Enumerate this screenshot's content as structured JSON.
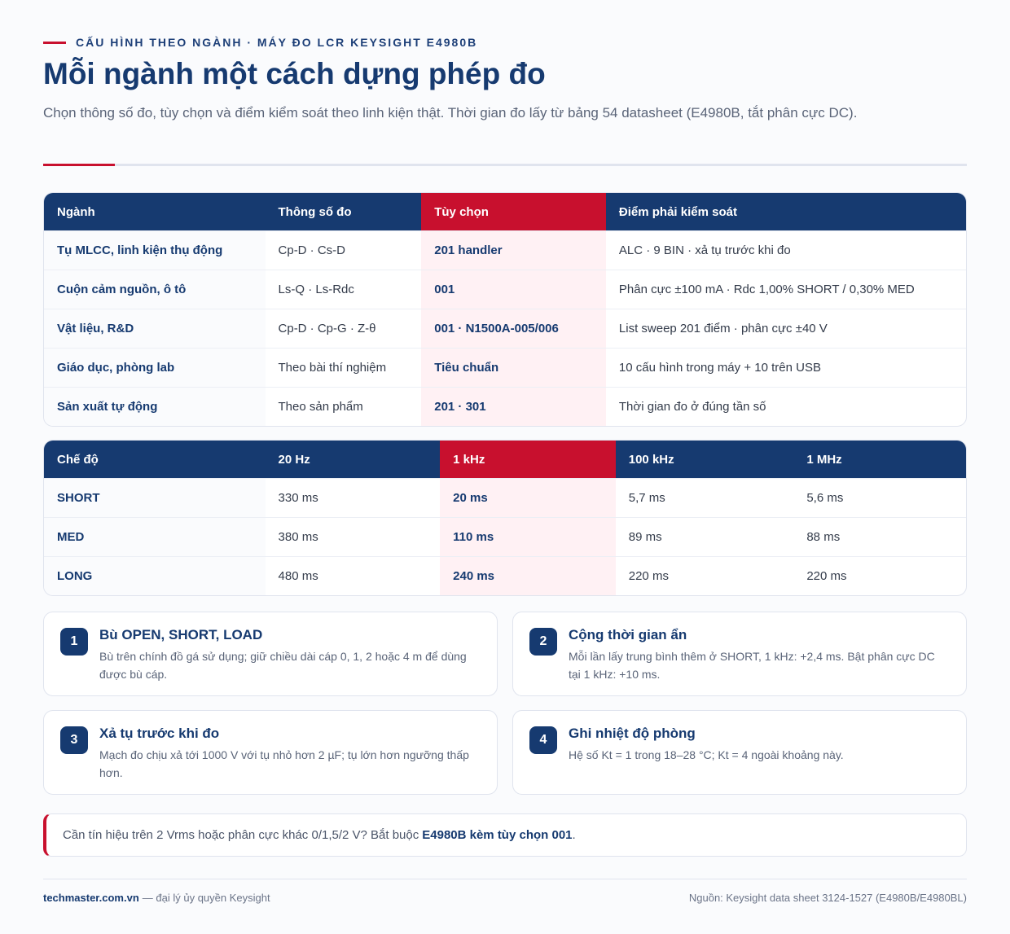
{
  "header": {
    "eyebrow": "CẤU HÌNH THEO NGÀNH · MÁY ĐO LCR KEYSIGHT E4980B",
    "title": "Mỗi ngành một cách dựng phép đo",
    "subtitle": "Chọn thông số đo, tùy chọn và điểm kiểm soát theo linh kiện thật. Thời gian đo lấy từ bảng 54 datasheet (E4980B, tắt phân cực DC)."
  },
  "industry_table": {
    "headers": [
      "Ngành",
      "Thông số đo",
      "Tùy chọn",
      "Điểm phải kiểm soát"
    ],
    "rows": [
      [
        "Tụ MLCC, linh kiện thụ động",
        "Cp-D · Cs-D",
        "201 handler",
        "ALC · 9 BIN · xả tụ trước khi đo"
      ],
      [
        "Cuộn cảm nguồn, ô tô",
        "Ls-Q · Ls-Rdc",
        "001",
        "Phân cực ±100 mA · Rdc 1,00% SHORT / 0,30% MED"
      ],
      [
        "Vật liệu, R&D",
        "Cp-D · Cp-G · Z-θ",
        "001 · N1500A-005/006",
        "List sweep 201 điểm · phân cực ±40 V"
      ],
      [
        "Giáo dục, phòng lab",
        "Theo bài thí nghiệm",
        "Tiêu chuẩn",
        "10 cấu hình trong máy + 10 trên USB"
      ],
      [
        "Sản xuất tự động",
        "Theo sản phẩm",
        "201 · 301",
        "Thời gian đo ở đúng tần số"
      ]
    ]
  },
  "timing_table": {
    "headers": [
      "Chế độ",
      "20 Hz",
      "1 kHz",
      "100 kHz",
      "1 MHz"
    ],
    "rows": [
      [
        "SHORT",
        "330 ms",
        "20 ms",
        "5,7 ms",
        "5,6 ms"
      ],
      [
        "MED",
        "380 ms",
        "110 ms",
        "89 ms",
        "88 ms"
      ],
      [
        "LONG",
        "480 ms",
        "240 ms",
        "220 ms",
        "220 ms"
      ]
    ]
  },
  "cards": [
    {
      "number": 1,
      "title": "Bù OPEN, SHORT, LOAD",
      "text": "Bù trên chính đồ gá sử dụng; giữ chiều dài cáp 0, 1, 2 hoặc 4 m để dùng được bù cáp."
    },
    {
      "number": 2,
      "title": "Cộng thời gian ẩn",
      "text": "Mỗi lần lấy trung bình thêm ở SHORT, 1 kHz: +2,4 ms. Bật phân cực DC tại 1 kHz: +10 ms."
    },
    {
      "number": 3,
      "title": "Xả tụ trước khi đo",
      "text": "Mạch đo chịu xả tới 1000 V với tụ nhỏ hơn 2 µF; tụ lớn hơn ngưỡng thấp hơn."
    },
    {
      "number": 4,
      "title": "Ghi nhiệt độ phòng",
      "text": "Hệ số Kt = 1 trong 18–28 °C; Kt = 4 ngoài khoảng này."
    }
  ],
  "note": {
    "text": "Cần tín hiệu trên 2 Vrms hoặc phân cực khác 0/1,5/2 V? Bắt buộc",
    "emphasis": "E4980B kèm tùy chọn 001",
    "end": "."
  },
  "footer": {
    "site": "techmaster.com.vn",
    "tagline": "— đại lý ủy quyền Keysight",
    "source": "Nguồn: Keysight data sheet 3124-1527 (E4980B/E4980BL)"
  }
}
